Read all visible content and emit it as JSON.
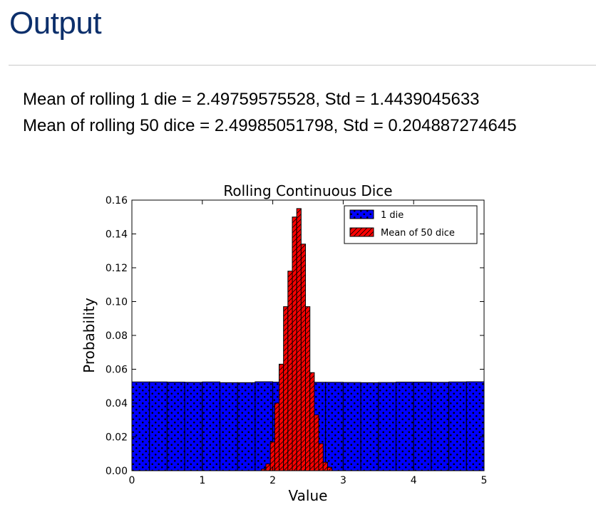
{
  "slide": {
    "title": "Output",
    "lines": [
      "Mean of rolling 1 die = 2.49759575528, Std = 1.4439045633",
      "Mean of rolling 50 dice = 2.49985051798, Std = 0.204887274645"
    ]
  },
  "chart_data": {
    "type": "bar",
    "title": "Rolling Continuous Dice",
    "xlabel": "Value",
    "ylabel": "Probability",
    "xlim": [
      0,
      5
    ],
    "ylim": [
      0,
      0.16
    ],
    "xticks": [
      "0",
      "1",
      "2",
      "3",
      "4",
      "5"
    ],
    "yticks": [
      "0.00",
      "0.02",
      "0.04",
      "0.06",
      "0.08",
      "0.10",
      "0.12",
      "0.14",
      "0.16"
    ],
    "grid": false,
    "legend_position": "top-right",
    "series": [
      {
        "name": "1 die",
        "color": "#0000ff",
        "hatch": "dots",
        "bin_start": 0,
        "bin_width": 0.25,
        "values": [
          0.0525,
          0.0525,
          0.0524,
          0.0523,
          0.0525,
          0.0521,
          0.0521,
          0.0526,
          0.0524,
          0.0522,
          0.0523,
          0.0523,
          0.0522,
          0.0521,
          0.0522,
          0.0524,
          0.0524,
          0.0523,
          0.0525,
          0.0526
        ]
      },
      {
        "name": "Mean of 50 dice",
        "color": "#ff0000",
        "hatch": "diagonal",
        "bin_start": 1.84,
        "bin_width": 0.0625,
        "values": [
          0.001,
          0.004,
          0.017,
          0.04,
          0.063,
          0.097,
          0.118,
          0.15,
          0.155,
          0.134,
          0.097,
          0.058,
          0.033,
          0.016,
          0.005,
          0.002
        ]
      }
    ]
  }
}
